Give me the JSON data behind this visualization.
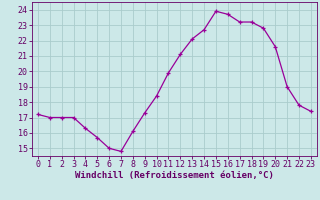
{
  "hours": [
    0,
    1,
    2,
    3,
    4,
    5,
    6,
    7,
    8,
    9,
    10,
    11,
    12,
    13,
    14,
    15,
    16,
    17,
    18,
    19,
    20,
    21,
    22,
    23
  ],
  "values": [
    17.2,
    17.0,
    17.0,
    17.0,
    16.3,
    15.7,
    15.0,
    14.8,
    16.1,
    17.3,
    18.4,
    19.9,
    21.1,
    22.1,
    22.7,
    23.9,
    23.7,
    23.2,
    23.2,
    22.8,
    21.6,
    19.0,
    17.8,
    17.4
  ],
  "line_color": "#990099",
  "marker": "+",
  "bg_color": "#cce8e8",
  "grid_color": "#aacccc",
  "xlabel": "Windchill (Refroidissement éolien,°C)",
  "yticks": [
    15,
    16,
    17,
    18,
    19,
    20,
    21,
    22,
    23,
    24
  ],
  "ylim": [
    14.5,
    24.5
  ],
  "xlim": [
    -0.5,
    23.5
  ],
  "tick_color": "#660066",
  "label_color": "#660066",
  "xlabel_fontsize": 6.5,
  "tick_fontsize": 6.0
}
